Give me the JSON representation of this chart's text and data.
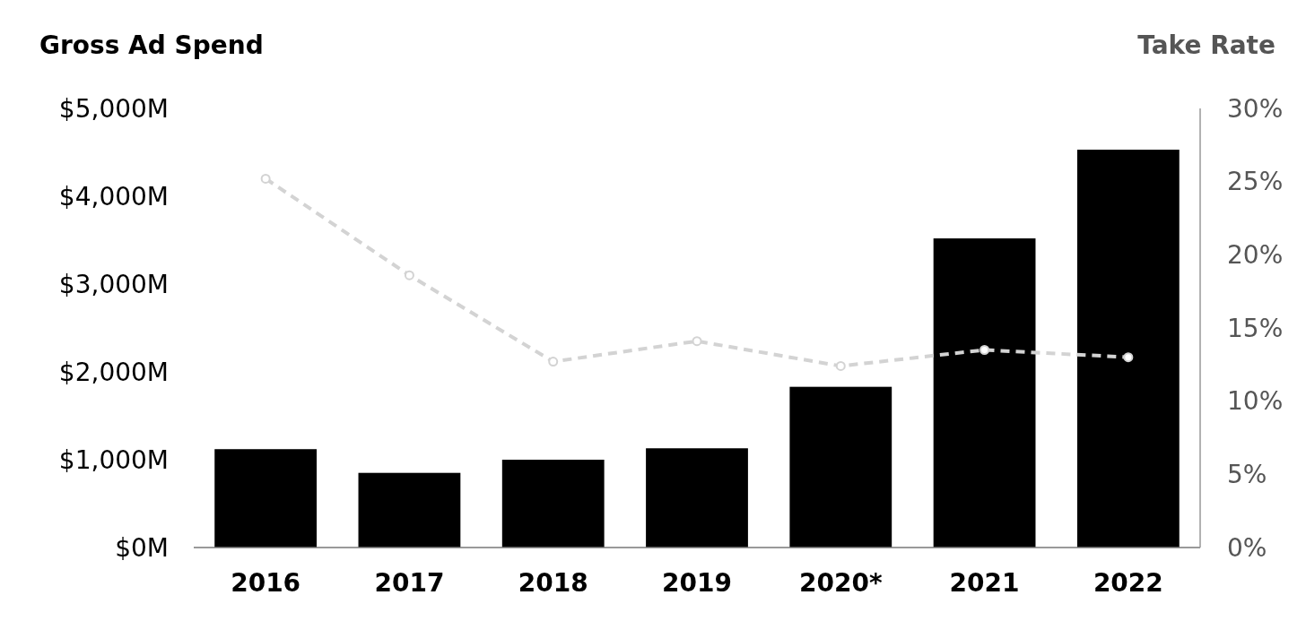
{
  "chart_data": {
    "type": "bar",
    "ylabel": "Gross Ad Spend",
    "y2label": "Take Rate",
    "categories": [
      "2016",
      "2017",
      "2018",
      "2019",
      "2020*",
      "2021",
      "2022"
    ],
    "series": [
      {
        "color": "#000000",
        "values": [
          1120,
          850,
          1000,
          1130,
          1830,
          3520,
          4530
        ]
      },
      {
        "type": "line",
        "axis": "y2",
        "color": "#d3d3d3",
        "line_style": "dashed",
        "marker": "circle",
        "values": [
          25.2,
          18.6,
          12.7,
          14.1,
          12.4,
          13.5,
          13.0
        ]
      }
    ],
    "ylim": [
      0,
      5000
    ],
    "yticks": [
      {
        "value": 0,
        "label": "$0M"
      },
      {
        "value": 1000,
        "label": "$1,000M"
      },
      {
        "value": 2000,
        "label": "$2,000M"
      },
      {
        "value": 3000,
        "label": "$3,000M"
      },
      {
        "value": 4000,
        "label": "$4,000M"
      },
      {
        "value": 5000,
        "label": "$5,000M"
      }
    ],
    "y2lim": [
      0,
      30
    ],
    "y2ticks": [
      {
        "value": 0,
        "label": "0%"
      },
      {
        "value": 5,
        "label": "5%"
      },
      {
        "value": 10,
        "label": "10%"
      },
      {
        "value": 15,
        "label": "15%"
      },
      {
        "value": 20,
        "label": "20%"
      },
      {
        "value": 25,
        "label": "25%"
      },
      {
        "value": 30,
        "label": "30%"
      }
    ],
    "grid": false
  }
}
